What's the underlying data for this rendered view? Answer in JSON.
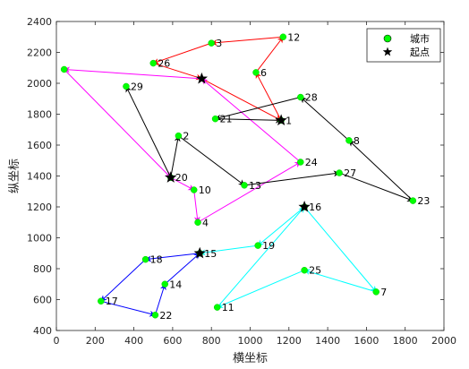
{
  "chart_data": {
    "type": "scatter",
    "title": "",
    "xlabel": "横坐标",
    "ylabel": "纵坐标",
    "xlim": [
      0,
      2000
    ],
    "ylim": [
      400,
      2400
    ],
    "xticks": [
      0,
      200,
      400,
      600,
      800,
      1000,
      1200,
      1400,
      1600,
      1800,
      2000
    ],
    "yticks": [
      400,
      600,
      800,
      1000,
      1200,
      1400,
      1600,
      1800,
      2000,
      2200,
      2400
    ],
    "grid": false,
    "legend": {
      "position": "top-right",
      "entries": [
        {
          "label": "城市",
          "marker": "circle",
          "color": "#00ff00"
        },
        {
          "label": "起点",
          "marker": "star",
          "color": "#000000"
        }
      ]
    },
    "cities": [
      {
        "id": "1",
        "x": 1160,
        "y": 1760
      },
      {
        "id": "2",
        "x": 630,
        "y": 1660
      },
      {
        "id": "3",
        "x": 800,
        "y": 2260
      },
      {
        "id": "4",
        "x": 730,
        "y": 1100
      },
      {
        "id": "6",
        "x": 1030,
        "y": 2070
      },
      {
        "id": "7",
        "x": 1650,
        "y": 650
      },
      {
        "id": "8",
        "x": 1510,
        "y": 1630
      },
      {
        "id": "10",
        "x": 710,
        "y": 1310
      },
      {
        "id": "11",
        "x": 830,
        "y": 550
      },
      {
        "id": "12",
        "x": 1170,
        "y": 2300
      },
      {
        "id": "13",
        "x": 970,
        "y": 1340
      },
      {
        "id": "14",
        "x": 560,
        "y": 700
      },
      {
        "id": "15",
        "x": 740,
        "y": 900
      },
      {
        "id": "16",
        "x": 1280,
        "y": 1200
      },
      {
        "id": "17",
        "x": 230,
        "y": 590
      },
      {
        "id": "18",
        "x": 460,
        "y": 860
      },
      {
        "id": "19",
        "x": 1040,
        "y": 950
      },
      {
        "id": "20",
        "x": 590,
        "y": 1390
      },
      {
        "id": "21",
        "x": 820,
        "y": 1770
      },
      {
        "id": "22",
        "x": 510,
        "y": 500
      },
      {
        "id": "23",
        "x": 1840,
        "y": 1240
      },
      {
        "id": "24",
        "x": 1260,
        "y": 1490
      },
      {
        "id": "25",
        "x": 1280,
        "y": 790
      },
      {
        "id": "26",
        "x": 500,
        "y": 2130
      },
      {
        "id": "27",
        "x": 1460,
        "y": 1420
      },
      {
        "id": "28",
        "x": 1260,
        "y": 1910
      },
      {
        "id": "29",
        "x": 360,
        "y": 1980
      },
      {
        "id": "",
        "x": 40,
        "y": 2090
      }
    ],
    "starts": [
      {
        "x": 1160,
        "y": 1760
      },
      {
        "x": 750,
        "y": 2030
      },
      {
        "x": 590,
        "y": 1390
      },
      {
        "x": 1280,
        "y": 1200
      },
      {
        "x": 740,
        "y": 900
      }
    ],
    "routes": [
      {
        "color": "#ff0000",
        "points": [
          [
            1160,
            1760
          ],
          [
            1030,
            2070
          ],
          [
            1170,
            2300
          ],
          [
            800,
            2260
          ],
          [
            500,
            2130
          ],
          [
            750,
            2030
          ],
          [
            1160,
            1760
          ]
        ]
      },
      {
        "color": "#ff00ff",
        "points": [
          [
            750,
            2030
          ],
          [
            40,
            2090
          ],
          [
            590,
            1390
          ],
          [
            710,
            1310
          ],
          [
            730,
            1100
          ],
          [
            1260,
            1490
          ],
          [
            750,
            2030
          ]
        ]
      },
      {
        "color": "#000000",
        "points": [
          [
            590,
            1390
          ],
          [
            630,
            1660
          ],
          [
            970,
            1340
          ],
          [
            1460,
            1420
          ],
          [
            1840,
            1240
          ],
          [
            1510,
            1630
          ],
          [
            1260,
            1910
          ],
          [
            820,
            1770
          ],
          [
            1160,
            1760
          ]
        ]
      },
      {
        "color": "#000000",
        "points": [
          [
            590,
            1390
          ],
          [
            360,
            1980
          ]
        ]
      },
      {
        "color": "#00ffff",
        "points": [
          [
            1280,
            1200
          ],
          [
            1040,
            950
          ],
          [
            740,
            900
          ]
        ]
      },
      {
        "color": "#00ffff",
        "points": [
          [
            1280,
            1200
          ],
          [
            1650,
            650
          ],
          [
            1280,
            790
          ],
          [
            830,
            550
          ],
          [
            1280,
            1200
          ]
        ]
      },
      {
        "color": "#0000ff",
        "points": [
          [
            740,
            900
          ],
          [
            460,
            860
          ],
          [
            230,
            590
          ],
          [
            510,
            500
          ],
          [
            560,
            700
          ],
          [
            740,
            900
          ]
        ]
      }
    ]
  }
}
